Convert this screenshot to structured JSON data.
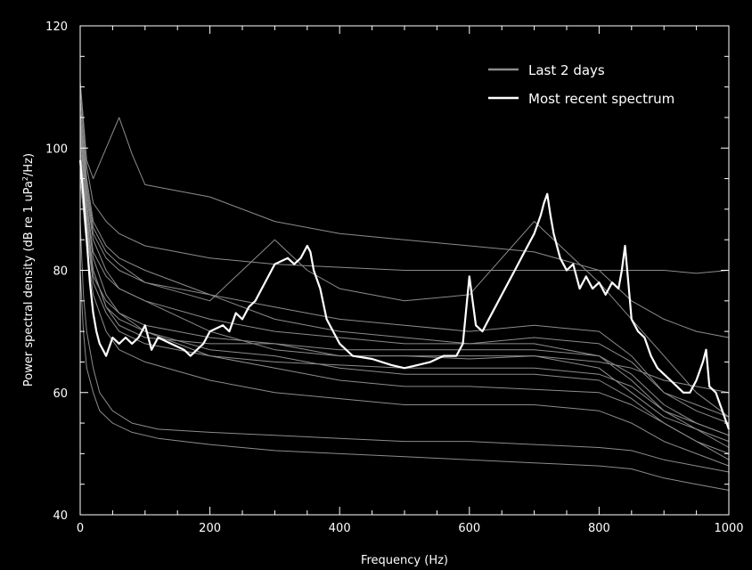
{
  "chart_data": {
    "type": "line",
    "title": "",
    "xlabel": "Frequency (Hz)",
    "ylabel_main": "Power spectral density (dB re 1 uPa",
    "ylabel_sup": "2",
    "ylabel_tail": "/Hz)",
    "xlim": [
      0,
      1000
    ],
    "ylim": [
      40,
      120
    ],
    "x_ticks": [
      0,
      200,
      400,
      600,
      800,
      1000
    ],
    "y_ticks": [
      40,
      60,
      80,
      100,
      120
    ],
    "x_minor_step": 50,
    "y_minor_step": 5,
    "grid": false,
    "legend_position": "top-right",
    "background": "#000000",
    "axis_color": "#ffffff",
    "series": [
      {
        "name": "Last 2 days",
        "color": "#8c8c8c",
        "lines": [
          {
            "x": [
              0,
              5,
              10,
              20,
              30,
              50,
              80,
              120,
              200,
              300,
              400,
              500,
              600,
              700,
              800,
              850,
              900,
              950,
              1000
            ],
            "y": [
              80,
              70,
              64,
              60,
              57,
              55,
              53.5,
              52.5,
              51.5,
              50.5,
              50,
              49.5,
              49,
              48.5,
              48,
              47.5,
              46,
              45,
              44
            ]
          },
          {
            "x": [
              0,
              5,
              10,
              20,
              30,
              50,
              80,
              120,
              200,
              300,
              400,
              500,
              600,
              700,
              800,
              850,
              900,
              950,
              1000
            ],
            "y": [
              88,
              76,
              70,
              64,
              60,
              57,
              55,
              54,
              53.5,
              53,
              52.5,
              52,
              52,
              51.5,
              51,
              50.5,
              49,
              48,
              47
            ]
          },
          {
            "x": [
              0,
              10,
              20,
              40,
              60,
              100,
              200,
              300,
              400,
              500,
              600,
              700,
              800,
              850,
              900,
              950,
              1000
            ],
            "y": [
              100,
              88,
              80,
              74,
              72,
              70,
              66,
              64,
              62,
              61,
              61,
              60.5,
              60,
              58,
              55,
              52,
              50
            ]
          },
          {
            "x": [
              0,
              10,
              20,
              40,
              60,
              100,
              200,
              300,
              400,
              500,
              600,
              700,
              800,
              850,
              900,
              950,
              1000
            ],
            "y": [
              105,
              92,
              85,
              80,
              77,
              75,
              70,
              67,
              66,
              66,
              65.5,
              66,
              64,
              60,
              56,
              54,
              52
            ]
          },
          {
            "x": [
              0,
              10,
              20,
              40,
              60,
              100,
              200,
              300,
              400,
              500,
              600,
              700,
              800,
              850,
              900,
              950,
              1000
            ],
            "y": [
              108,
              95,
              88,
              84,
              82,
              80,
              76,
              72,
              70,
              69,
              68,
              68,
              66,
              62,
              57,
              55,
              53
            ]
          },
          {
            "x": [
              0,
              10,
              20,
              40,
              60,
              100,
              200,
              300,
              400,
              500,
              600,
              700,
              800,
              850,
              900,
              950,
              1000
            ],
            "y": [
              110,
              97,
              91,
              88,
              86,
              84,
              82,
              81,
              80.5,
              80,
              80,
              80,
              80,
              80,
              80,
              79.5,
              80
            ]
          },
          {
            "x": [
              0,
              10,
              20,
              40,
              60,
              80,
              100,
              200,
              300,
              400,
              500,
              600,
              700,
              800,
              850,
              900,
              950,
              1000
            ],
            "y": [
              111,
              98,
              95,
              100,
              105,
              99,
              94,
              92,
              88,
              86,
              85,
              84,
              83,
              80,
              75,
              72,
              70,
              69
            ]
          },
          {
            "x": [
              0,
              10,
              20,
              40,
              60,
              100,
              200,
              300,
              400,
              500,
              600,
              700,
              800,
              850,
              900,
              950,
              1000
            ],
            "y": [
              102,
              90,
              82,
              76,
              73,
              70,
              67,
              66,
              64,
              63,
              63,
              63,
              62,
              59,
              55,
              52,
              49
            ]
          },
          {
            "x": [
              0,
              10,
              20,
              40,
              60,
              100,
              200,
              300,
              400,
              500,
              600,
              700,
              800,
              850,
              900,
              950,
              1000
            ],
            "y": [
              95,
              84,
              76,
              70,
              67,
              65,
              62,
              60,
              59,
              58,
              58,
              58,
              57,
              55,
              52,
              50,
              48
            ]
          },
          {
            "x": [
              0,
              10,
              20,
              40,
              60,
              100,
              200,
              300,
              400,
              500,
              600,
              700,
              800,
              850,
              900,
              950,
              1000
            ],
            "y": [
              104,
              93,
              86,
              82,
              80,
              78,
              76,
              74,
              72,
              71,
              70,
              71,
              70,
              66,
              60,
              57,
              55
            ]
          },
          {
            "x": [
              0,
              10,
              20,
              40,
              60,
              100,
              200,
              250,
              300,
              350,
              400,
              500,
              600,
              700,
              800,
              850,
              900,
              950,
              1000
            ],
            "y": [
              106,
              94,
              87,
              83,
              81,
              78,
              75,
              80,
              85,
              80,
              77,
              75,
              76,
              88,
              78,
              72,
              66,
              60,
              56
            ]
          },
          {
            "x": [
              0,
              10,
              20,
              40,
              60,
              100,
              200,
              300,
              400,
              500,
              600,
              700,
              800,
              850,
              900,
              950,
              1000
            ],
            "y": [
              100,
              89,
              80,
              74,
              71,
              69,
              68,
              68,
              67,
              67,
              67,
              67,
              66,
              63,
              58,
              55,
              53
            ]
          },
          {
            "x": [
              0,
              10,
              20,
              40,
              60,
              100,
              200,
              300,
              400,
              500,
              600,
              700,
              800,
              850,
              900,
              950,
              1000
            ],
            "y": [
              97,
              86,
              78,
              73,
              70,
              68,
              66,
              65,
              64.5,
              64,
              64,
              64,
              63,
              61,
              57,
              54,
              51
            ]
          },
          {
            "x": [
              0,
              10,
              20,
              40,
              60,
              100,
              200,
              300,
              400,
              500,
              600,
              700,
              800,
              850,
              900,
              950,
              1000
            ],
            "y": [
              103,
              91,
              83,
              79,
              77,
              75,
              72,
              70,
              69,
              68,
              68,
              69,
              68,
              65,
              60,
              58,
              56
            ]
          },
          {
            "x": [
              0,
              10,
              20,
              40,
              60,
              100,
              200,
              300,
              400,
              500,
              600,
              700,
              800,
              850,
              900,
              950,
              1000
            ],
            "y": [
              99,
              87,
              79,
              75,
              73,
              71,
              69,
              68,
              66,
              66,
              66,
              66,
              65,
              64,
              62,
              61,
              60
            ]
          }
        ]
      },
      {
        "name": "Most recent spectrum",
        "color": "#ffffff",
        "lines": [
          {
            "x": [
              0,
              5,
              10,
              15,
              20,
              25,
              30,
              35,
              40,
              50,
              60,
              70,
              80,
              90,
              100,
              110,
              120,
              140,
              160,
              170,
              180,
              190,
              200,
              220,
              230,
              240,
              250,
              260,
              270,
              280,
              290,
              300,
              320,
              330,
              340,
              350,
              355,
              360,
              370,
              380,
              400,
              420,
              450,
              480,
              500,
              520,
              540,
              560,
              580,
              590,
              600,
              610,
              620,
              630,
              640,
              650,
              660,
              670,
              680,
              690,
              700,
              710,
              715,
              720,
              725,
              730,
              740,
              750,
              760,
              770,
              780,
              790,
              800,
              810,
              820,
              830,
              835,
              840,
              845,
              850,
              860,
              870,
              880,
              890,
              900,
              910,
              920,
              930,
              940,
              950,
              960,
              965,
              970,
              980,
              990,
              1000
            ],
            "y": [
              98,
              92,
              85,
              78,
              73,
              70,
              68,
              67,
              66,
              69,
              68,
              69,
              68,
              69,
              71,
              67,
              69,
              68,
              67,
              66,
              67,
              68,
              70,
              71,
              70,
              73,
              72,
              74,
              75,
              77,
              79,
              81,
              82,
              81,
              82,
              84,
              83,
              80,
              77,
              72,
              68,
              66,
              65.5,
              64.5,
              64,
              64.5,
              65,
              66,
              66,
              68,
              79,
              71,
              70,
              72,
              74,
              76,
              78,
              80,
              82,
              84,
              86,
              89,
              91,
              92.5,
              89,
              86,
              82,
              80,
              81,
              77,
              79,
              77,
              78,
              76,
              78,
              77,
              80,
              84,
              78,
              72,
              70,
              69,
              66,
              64,
              63,
              62,
              61,
              60,
              60,
              62,
              65,
              67,
              61,
              60,
              57,
              54
            ]
          }
        ]
      }
    ]
  }
}
